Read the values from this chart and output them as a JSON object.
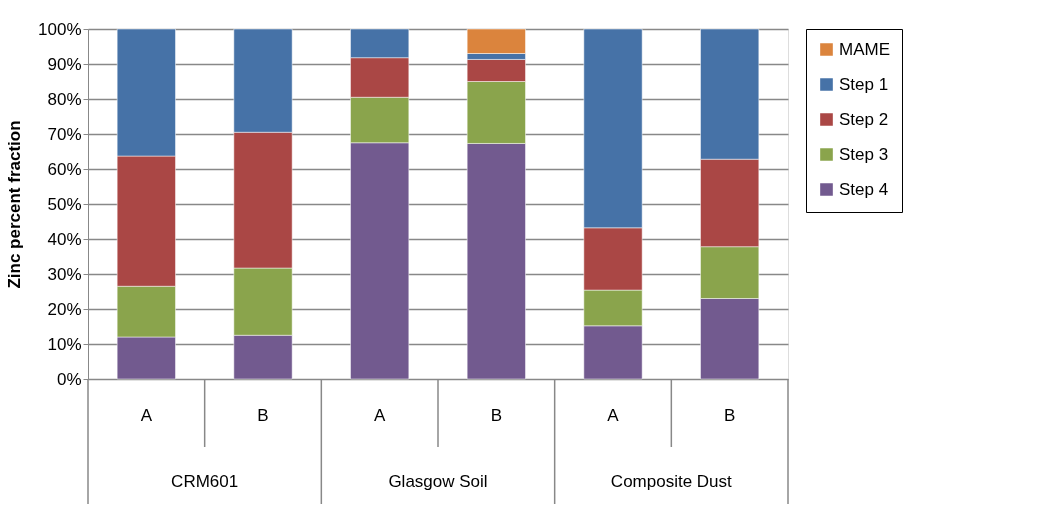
{
  "chart_data": {
    "type": "bar",
    "stacked": true,
    "ylabel": "Zinc  percent fraction",
    "categories": [
      "A",
      "B",
      "A",
      "B",
      "A",
      "B"
    ],
    "annotations": [
      "CRM601",
      "Glasgow Soil",
      "Composite Dust"
    ],
    "series": [
      {
        "name": "Step 4",
        "color": "#725a8f",
        "values": [
          12,
          12.5,
          67.5,
          67.3,
          15.2,
          23
        ]
      },
      {
        "name": "Step 3",
        "color": "#8aa44c",
        "values": [
          14.5,
          19.2,
          13,
          17.7,
          10.2,
          14.8
        ]
      },
      {
        "name": "Step 2",
        "color": "#aa4745",
        "values": [
          37.2,
          38.8,
          11.3,
          6.3,
          17.8,
          25
        ]
      },
      {
        "name": "Step 1",
        "color": "#4672a7",
        "values": [
          36.3,
          29.5,
          8.2,
          1.7,
          56.8,
          37.2
        ]
      },
      {
        "name": "MAME",
        "color": "#db843d",
        "values": [
          null,
          null,
          null,
          7,
          null,
          null
        ]
      }
    ],
    "ylim": [
      0,
      100
    ],
    "yticks": [
      {
        "value": 0,
        "label": "0%"
      },
      {
        "value": 10,
        "label": "10%"
      },
      {
        "value": 20,
        "label": "20%"
      },
      {
        "value": 30,
        "label": "30%"
      },
      {
        "value": 40,
        "label": "40%"
      },
      {
        "value": 50,
        "label": "50%"
      },
      {
        "value": 60,
        "label": "60%"
      },
      {
        "value": 70,
        "label": "70%"
      },
      {
        "value": 80,
        "label": "80%"
      },
      {
        "value": 90,
        "label": "90%"
      },
      {
        "value": 100,
        "label": "100%"
      }
    ],
    "grid": "y",
    "legend": "right"
  }
}
